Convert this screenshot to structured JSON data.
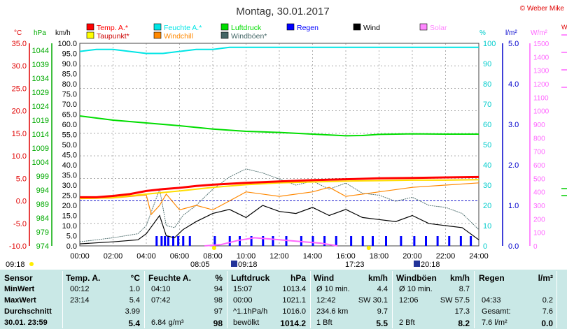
{
  "title": "Montag, 30.01.2017",
  "copyright": "© Weber Mike",
  "legend": [
    {
      "name": "Temp. A.*",
      "color": "#ff0000"
    },
    {
      "name": "Feuchte A.*",
      "color": "#00e5e5"
    },
    {
      "name": "Luftdruck",
      "color": "#00dd00"
    },
    {
      "name": "Regen",
      "color": "#0000ff"
    },
    {
      "name": "Wind",
      "color": "#000000"
    },
    {
      "name": "Solar",
      "color": "#ff88ff"
    },
    {
      "name": "Taupunkt*",
      "color": "#ffff00"
    },
    {
      "name": "Windchill",
      "color": "#ff8800"
    },
    {
      "name": "Windböen*",
      "color": "#446666"
    }
  ],
  "axis_units": {
    "temp": "°C",
    "hpa": "hPa",
    "kmh": "km/h",
    "percent": "%",
    "rain": "l/m²",
    "solar": "W/m²"
  },
  "chart_data": {
    "type": "line",
    "x_ticks": [
      "00:00",
      "02:00",
      "04:00",
      "06:00",
      "08:00",
      "10:00",
      "12:00",
      "14:00",
      "16:00",
      "18:00",
      "20:00",
      "22:00",
      "24:00"
    ],
    "temp_ticks": [
      "35.0",
      "30.0",
      "25.0",
      "20.0",
      "15.0",
      "10.0",
      "5.0",
      "0.0",
      "-5.0",
      "-10.0"
    ],
    "hpa_ticks": [
      "1044",
      "1039",
      "1034",
      "1029",
      "1024",
      "1019",
      "1014",
      "1009",
      "1004",
      "999",
      "994",
      "989",
      "984",
      "979",
      "974"
    ],
    "kmh_ticks": [
      "100.0",
      "95.0",
      "90.0",
      "85.0",
      "80.0",
      "75.0",
      "70.0",
      "65.0",
      "60.0",
      "55.0",
      "50.0",
      "45.0",
      "40.0",
      "35.0",
      "30.0",
      "25.0",
      "20.0",
      "15.0",
      "10.0",
      "5.0",
      "0.0"
    ],
    "pct_ticks": [
      "100",
      "90",
      "80",
      "70",
      "60",
      "50",
      "40",
      "30",
      "20",
      "10",
      "0"
    ],
    "rain_ticks": [
      "5.0",
      "4.0",
      "3.0",
      "2.0",
      "1.0",
      "0.0"
    ],
    "solar_ticks": [
      "1500",
      "1400",
      "1300",
      "1200",
      "1100",
      "1000",
      "900",
      "800",
      "700",
      "600",
      "500",
      "400",
      "300",
      "200",
      "100",
      "0"
    ],
    "temp_ylim": [
      -10,
      35
    ],
    "series": {
      "temp": {
        "x": [
          0,
          1,
          2,
          3,
          4,
          5,
          6,
          7,
          8,
          10,
          12,
          14,
          16,
          18,
          20,
          22,
          24
        ],
        "y": [
          0.8,
          0.8,
          1.1,
          1.5,
          2.2,
          2.6,
          2.9,
          3.3,
          3.6,
          4.0,
          4.3,
          4.6,
          4.8,
          5.0,
          5.1,
          5.2,
          5.3
        ]
      },
      "humidity": {
        "x": [
          0,
          1,
          2,
          3,
          4,
          5,
          6,
          7,
          8,
          9,
          10,
          12,
          14,
          16,
          18,
          20,
          22,
          24
        ],
        "y": [
          96,
          97,
          97,
          96,
          95,
          95,
          96,
          97,
          97,
          98,
          98,
          98,
          98,
          98,
          98,
          98,
          98,
          98
        ]
      },
      "pressure": {
        "x": [
          0,
          2,
          4,
          6,
          8,
          10,
          12,
          14,
          16,
          17,
          18,
          20,
          22,
          24
        ],
        "y": [
          1020.5,
          1019.0,
          1018.0,
          1017.0,
          1015.8,
          1015.0,
          1014.6,
          1014.0,
          1013.4,
          1013.5,
          1013.9,
          1014.1,
          1014.0,
          1014.0
        ]
      },
      "dewpoint": {
        "x": [
          0,
          2,
          4,
          6,
          8,
          10,
          12,
          14,
          16,
          18,
          20,
          22,
          24
        ],
        "y": [
          0.5,
          0.7,
          1.5,
          2.2,
          3.0,
          3.6,
          4.0,
          4.2,
          4.4,
          4.5,
          4.6,
          4.6,
          4.7
        ]
      },
      "windchill": {
        "x": [
          0,
          2,
          4,
          4.3,
          4.8,
          5.2,
          6,
          7,
          8,
          9,
          10,
          12,
          14,
          15,
          16,
          18,
          20,
          22,
          24
        ],
        "y": [
          0.5,
          0.6,
          1.3,
          -3,
          -1,
          1.5,
          -2,
          -1,
          -2,
          0,
          2,
          1,
          2,
          3,
          1,
          2,
          3,
          3.5,
          4
        ]
      },
      "wind": {
        "x": [
          0,
          2,
          3.5,
          4,
          4.8,
          5.2,
          5.7,
          6.2,
          7,
          8,
          9,
          10,
          11,
          12,
          13,
          14,
          15,
          16,
          17,
          18,
          19,
          20,
          21,
          22,
          23,
          24
        ],
        "y": [
          1,
          2,
          3,
          6,
          15,
          5,
          4,
          8,
          12,
          16,
          18,
          14,
          20,
          17,
          16,
          19,
          15,
          18,
          14,
          13,
          12,
          15,
          11,
          10,
          9,
          3
        ]
      },
      "gusts": {
        "x": [
          0,
          2,
          3.5,
          4,
          4.8,
          5.2,
          5.7,
          6.2,
          7,
          8,
          9,
          10,
          11,
          12,
          13,
          14,
          15,
          16,
          17,
          18,
          19,
          20,
          21,
          22,
          23,
          24
        ],
        "y": [
          2,
          4,
          6,
          10,
          28,
          10,
          9,
          15,
          20,
          28,
          34,
          38,
          36,
          33,
          30,
          32,
          28,
          31,
          26,
          25,
          22,
          24,
          20,
          19,
          16,
          8
        ]
      },
      "solar": {
        "x": [
          7.5,
          8.5,
          9.5,
          10.5,
          11.5,
          12.5,
          13.5,
          14.5,
          15.5
        ],
        "y": [
          0,
          10,
          40,
          60,
          50,
          40,
          30,
          20,
          0
        ]
      },
      "rain_bars_x": [
        4.6,
        4.9,
        5.1,
        5.3,
        5.6,
        5.9,
        6.2,
        6.6,
        8.1,
        9.0,
        9.6,
        10.3,
        11.0,
        11.6,
        12.4,
        13.3,
        14.0,
        14.7,
        15.4,
        16.3,
        17.0,
        17.6,
        18.4,
        19.3,
        20.1,
        20.8,
        21.5,
        22.2,
        22.9,
        23.5
      ]
    },
    "markers": {
      "sunrise": "08:05",
      "sunset": "17:23",
      "moonrise": "09:18",
      "moonset": "20:18",
      "left_time": "09:18"
    }
  },
  "table": {
    "headers": {
      "sensor": "Sensor",
      "temp": "Temp. A.",
      "temp_unit": "°C",
      "hum": "Feuchte A.",
      "hum_unit": "%",
      "press": "Luftdruck",
      "press_unit": "hPa",
      "wind": "Wind",
      "wind_unit": "km/h",
      "gust": "Windböen",
      "gust_unit": "km/h",
      "rain": "Regen",
      "rain_unit": "l/m²"
    },
    "rows": [
      {
        "label": "MinWert",
        "t_time": "00:12",
        "t_val": "1.0",
        "h_time": "04:10",
        "h_val": "94",
        "p_time": "15:07",
        "p_val": "1013.4",
        "w_label": "Ø 10 min.",
        "w_val": "4.4",
        "g_label": "Ø 10 min.",
        "g_val": "8.7",
        "r_label": "",
        "r_val": ""
      },
      {
        "label": "MaxWert",
        "t_time": "23:14",
        "t_val": "5.4",
        "h_time": "07:42",
        "h_val": "98",
        "p_time": "00:00",
        "p_val": "1021.1",
        "w_label": "12:42",
        "w_val": "SW 30.1",
        "g_label": "12:06",
        "g_val": "SW 57.5",
        "r_label": "04:33",
        "r_val": "0.2"
      },
      {
        "label": "Durchschnitt",
        "t_time": "",
        "t_val": "3.99",
        "h_time": "",
        "h_val": "97",
        "p_time": "^1.1hPa/h",
        "p_val": "1016.0",
        "w_label": "234.6 km",
        "w_val": "9.7",
        "g_label": "",
        "g_val": "17.3",
        "r_label": "Gesamt:",
        "r_val": "7.6"
      },
      {
        "label": "30.01. 23:59",
        "t_time": "",
        "t_val": "5.4",
        "h_time": "6.84 g/m³",
        "h_val": "98",
        "p_time": "bewölkt",
        "p_val": "1014.2",
        "w_label": "1 Bft",
        "w_val": "5.5",
        "g_label": "2 Bft",
        "g_val": "8.2",
        "r_label": "7.6 l/m²",
        "r_val": "0.0"
      }
    ]
  }
}
